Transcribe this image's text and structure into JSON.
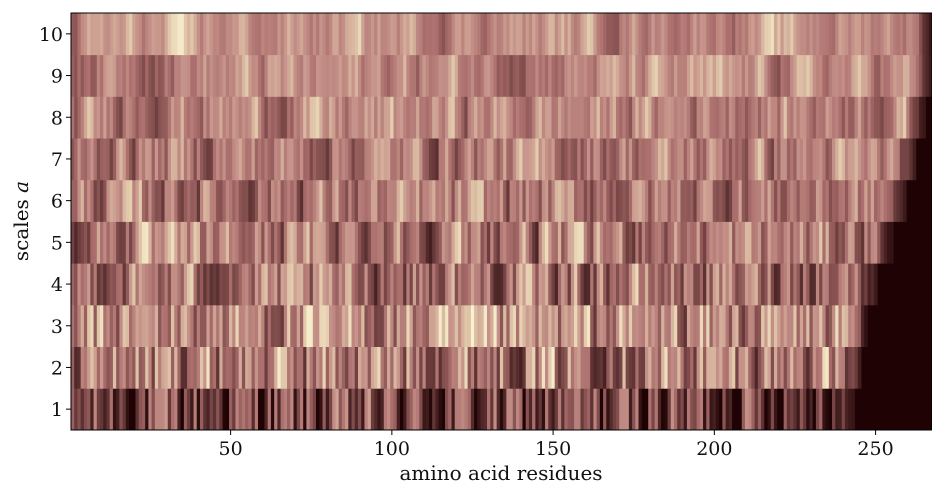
{
  "chart_data": {
    "type": "heatmap",
    "title": "",
    "xlabel": "amino acid residues",
    "ylabel_text": "scales ",
    "ylabel_var": "a",
    "xlim": [
      1,
      267
    ],
    "ylim": [
      0.5,
      10.5
    ],
    "x_ticks": [
      50,
      100,
      150,
      200,
      250
    ],
    "x_tick_labels": [
      "50",
      "100",
      "150",
      "200",
      "250"
    ],
    "y_ticks": [
      1,
      2,
      3,
      4,
      5,
      6,
      7,
      8,
      9,
      10
    ],
    "y_tick_labels": [
      "1",
      "2",
      "3",
      "4",
      "5",
      "6",
      "7",
      "8",
      "9",
      "10"
    ],
    "grid": false,
    "colormap": "pink",
    "rows": [
      {
        "scale": 1,
        "end_residue": 243,
        "level": 0.3
      },
      {
        "scale": 2,
        "end_residue": 245,
        "level": 0.58
      },
      {
        "scale": 3,
        "end_residue": 247,
        "level": 0.6
      },
      {
        "scale": 4,
        "end_residue": 250,
        "level": 0.52
      },
      {
        "scale": 5,
        "end_residue": 255,
        "level": 0.55
      },
      {
        "scale": 6,
        "end_residue": 259,
        "level": 0.54
      },
      {
        "scale": 7,
        "end_residue": 262,
        "level": 0.57
      },
      {
        "scale": 8,
        "end_residue": 265,
        "level": 0.62
      },
      {
        "scale": 9,
        "end_residue": 267,
        "level": 0.62
      },
      {
        "scale": 10,
        "end_residue": 267,
        "level": 0.66
      }
    ],
    "colors": {
      "dark": "#1e0204",
      "mid": "#b77b76",
      "light": "#f7eec8"
    }
  }
}
